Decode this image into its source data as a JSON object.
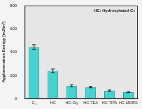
{
  "chart_data": {
    "type": "bar",
    "annotation": "HC: Hydroxylated C₅",
    "y_label": "Agglomeration Energy [mJ/m²]",
    "categories": [
      "C₅",
      "HC",
      "HC-Gly",
      "HC-TEA",
      "HC-TIPA",
      "HC-MDIPA"
    ],
    "values": [
      445,
      240,
      112,
      100,
      70,
      57
    ],
    "errors": [
      20,
      15,
      8,
      6,
      5,
      5
    ],
    "color": "#43d3d3",
    "ylim": [
      0,
      800
    ],
    "yticks": [
      0,
      200,
      400,
      600,
      800
    ],
    "grid": false
  }
}
